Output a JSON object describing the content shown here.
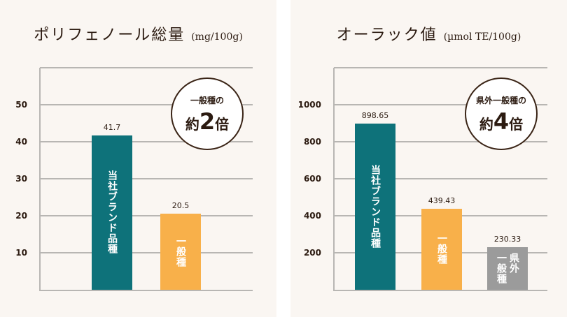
{
  "chart_data": [
    {
      "type": "bar",
      "title": "ポリフェノール総量",
      "unit": "(mg/100g)",
      "categories": [
        "当社ブランド品種",
        "一般種"
      ],
      "values": [
        41.7,
        20.5
      ],
      "value_labels": [
        "41.7",
        "20.5"
      ],
      "colors": [
        "#0e727a",
        "#f8b04a"
      ],
      "ylim": [
        0,
        60
      ],
      "yticks": [
        10,
        20,
        30,
        40,
        50
      ],
      "ytick_labels": [
        "10",
        "20",
        "30",
        "40",
        "50"
      ],
      "grid": true,
      "badge": {
        "line1": "一般種の",
        "prefix": "約",
        "number": "2",
        "suffix": "倍"
      }
    },
    {
      "type": "bar",
      "title": "オーラック値",
      "unit": "(µmol TE/100g)",
      "categories": [
        "当社ブランド品種",
        "一般種",
        "県外\n一般種"
      ],
      "values": [
        898.65,
        439.43,
        230.33
      ],
      "value_labels": [
        "898.65",
        "439.43",
        "230.33"
      ],
      "colors": [
        "#0e727a",
        "#f8b04a",
        "#9b9b9b"
      ],
      "ylim": [
        0,
        1200
      ],
      "yticks": [
        200,
        400,
        600,
        800,
        1000
      ],
      "ytick_labels": [
        "200",
        "400",
        "600",
        "800",
        "1000"
      ],
      "grid": true,
      "badge": {
        "line1": "県外一般種の",
        "prefix": "約",
        "number": "4",
        "suffix": "倍"
      }
    }
  ]
}
